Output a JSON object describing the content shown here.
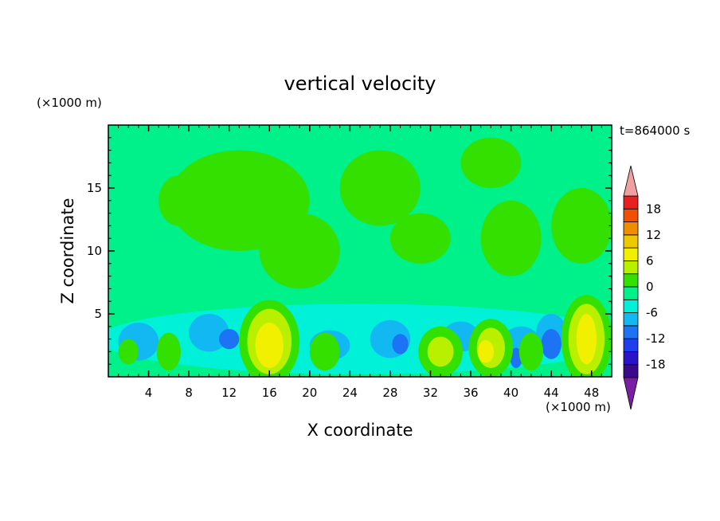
{
  "chart_data": {
    "type": "heatmap",
    "title": "vertical velocity",
    "xlabel": "X coordinate",
    "ylabel": "Z coordinate",
    "x_unit": "(×1000 m)",
    "y_unit": "(×1000 m)",
    "time_label": "t=864000 s",
    "xlim": [
      0,
      50
    ],
    "ylim": [
      0,
      20
    ],
    "x_ticks": [
      "4",
      "8",
      "12",
      "16",
      "20",
      "24",
      "28",
      "32",
      "36",
      "40",
      "44",
      "48"
    ],
    "y_ticks": [
      "5",
      "10",
      "15"
    ],
    "colorbar": {
      "levels": [
        -21,
        -18,
        -15,
        -12,
        -9,
        -6,
        -3,
        0,
        3,
        6,
        9,
        12,
        15,
        18,
        21
      ],
      "tick_labels": [
        "18",
        "12",
        "6",
        "0",
        "-6",
        "-12",
        "-18"
      ],
      "colors": [
        "#7a1fa2",
        "#3a0a8c",
        "#2a14c8",
        "#1f3ef0",
        "#1c74f4",
        "#12b8f2",
        "#00f0d8",
        "#00f08a",
        "#33e000",
        "#b8f000",
        "#f0f000",
        "#f0c800",
        "#f08c00",
        "#f05000",
        "#e82020",
        "#f0a0a0"
      ],
      "under_color": "#7a1fa2",
      "over_color": "#f0a0a0"
    },
    "colors": {
      "background_field": "#00f08a",
      "near_zero_positive": "#33e000",
      "weak_negative": "#00f0d8",
      "moderate_negative": "#12b8f2",
      "strong_negative": "#1c74f4",
      "weak_updraft": "#b8f000",
      "strong_updraft": "#f0f000"
    }
  }
}
